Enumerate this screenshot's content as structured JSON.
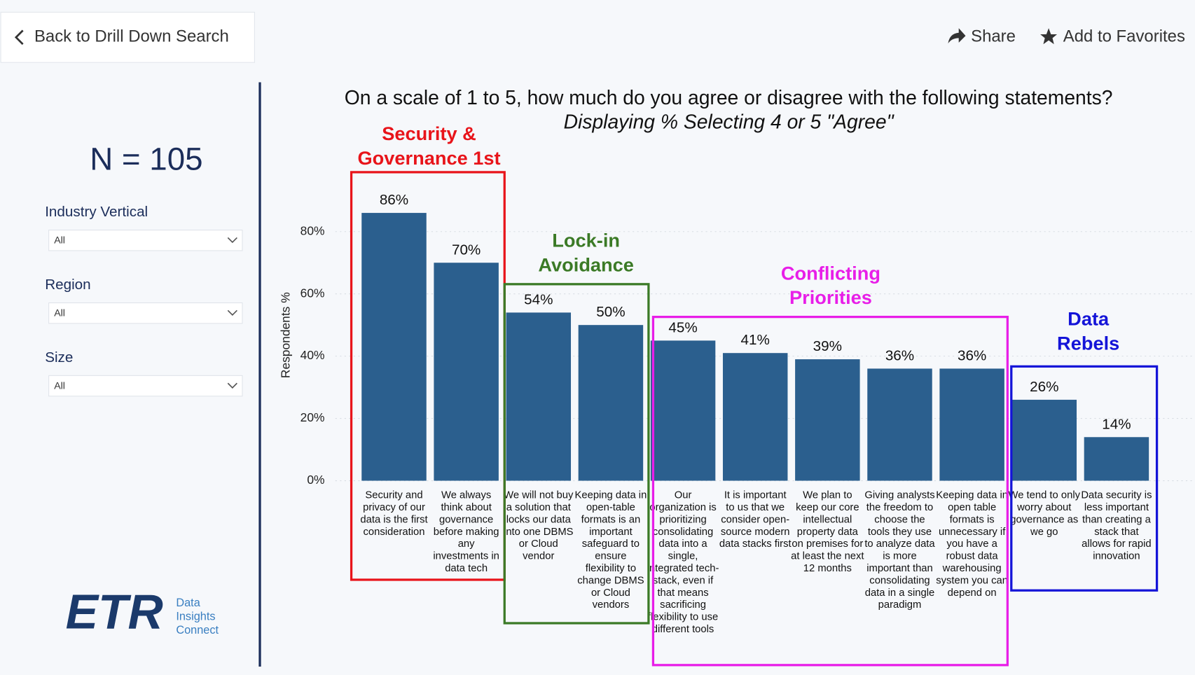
{
  "header": {
    "back": "Back to Drill Down Search",
    "share": "Share",
    "favorite": "Add to Favorites"
  },
  "sidebar": {
    "n": "N = 105",
    "filters": [
      {
        "label": "Industry Vertical",
        "value": "All"
      },
      {
        "label": "Region",
        "value": "All"
      },
      {
        "label": "Size",
        "value": "All"
      }
    ],
    "logo": {
      "mark": "ETR",
      "lines": [
        "Data",
        "Insights",
        "Connect"
      ]
    }
  },
  "chart_data": {
    "type": "bar",
    "title": "On a scale of 1 to 5, how much do you agree or disagree with the following statements?",
    "subtitle": "Displaying % Selecting 4 or 5 \"Agree\"",
    "y_label": "Respondents %",
    "categories": [
      "Security and privacy of our data is the first consideration",
      "We always think about governance before making any investments in data tech",
      "We will not buy a solution that locks our data into one DBMS or Cloud vendor",
      "Keeping data in open-table formats is an important safeguard to ensure flexibility to change DBMS or Cloud vendors",
      "Our organization is prioritizing consolidating data into a single, integrated tech-stack, even if that means sacrificing flexibility to use different tools",
      "It is important to us that we consider open-source modern data stacks first",
      "We plan to keep our core intellectual property data on premises for at least the next 12 months",
      "Giving analysts the freedom to choose the tools they use to analyze data is more important than consolidating data in a single paradigm",
      "Keeping data in open table formats is unnecessary if you have a robust data warehousing system you can depend on",
      "We tend to only worry about governance as we go",
      "Data security is less important than creating a stack that allows for rapid innovation"
    ],
    "values": [
      86,
      70,
      54,
      50,
      45,
      41,
      39,
      36,
      36,
      26,
      14
    ],
    "value_labels": [
      "86%",
      "70%",
      "54%",
      "50%",
      "45%",
      "41%",
      "39%",
      "36%",
      "36%",
      "26%",
      "14%"
    ],
    "color": "#2b5f8e",
    "ylim": [
      0,
      90
    ],
    "yticks": [
      {
        "value": 0,
        "label": "0%"
      },
      {
        "value": 20,
        "label": "20%"
      },
      {
        "value": 40,
        "label": "40%"
      },
      {
        "value": 60,
        "label": "60%"
      },
      {
        "value": 80,
        "label": "80%"
      }
    ],
    "grid": true,
    "groups": [
      {
        "label": "Security & Governance 1st",
        "color": "#e8141a"
      },
      {
        "label": "Lock-in Avoidance",
        "color": "#3b7a26"
      },
      {
        "label": "Conflicting Priorities",
        "color": "#e81ee8"
      },
      {
        "label": "Data Rebels",
        "color": "#1414d8"
      }
    ]
  }
}
